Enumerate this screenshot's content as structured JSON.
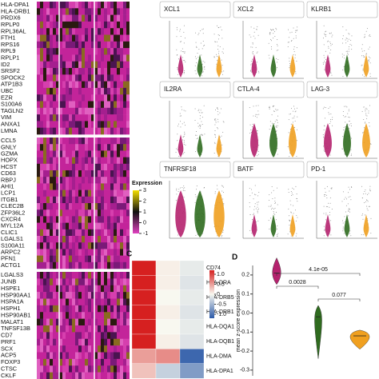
{
  "heatmap": {
    "blocks": [
      [
        "HLA-DPA1",
        "HLA-DRB1",
        "PRDX6",
        "RPLP0",
        "RPL36AL",
        "FTH1",
        "RPS16",
        "RPL9",
        "RPLP1",
        "ID2",
        "SRSF2",
        "SPOCK2",
        "ATP1B3",
        "UBC",
        "EZR",
        "S100A6",
        "TAGLN2",
        "VIM",
        "ANXA1",
        "LMNA"
      ],
      [
        "CCL5",
        "GNLY",
        "GZMA",
        "HOPX",
        "HCST",
        "CD63",
        "RBPJ",
        "AHI1",
        "LCP1",
        "ITGB1",
        "CLEC2B",
        "ZFP36L2",
        "CXCR4",
        "MYL12A",
        "CLIC1",
        "LGALS1",
        "S100A11",
        "ARPC2",
        "PFN1",
        "ACTG1"
      ],
      [
        "LGALS3",
        "JUNB",
        "HSPE1",
        "HSP90AA1",
        "HSPA1A",
        "HSPH1",
        "HSP90AB1",
        "MALAT1",
        "TNFSF13B",
        "CD7",
        "PRF1",
        "SCX",
        "ACP5",
        "FOXP3",
        "CTSC",
        "CKLF"
      ]
    ],
    "legend_title": "Expression",
    "legend_ticks": [
      3,
      2,
      1,
      0,
      -1
    ]
  },
  "violins": {
    "titles": [
      "XCL1",
      "XCL2",
      "KLRB1",
      "IL2RA",
      "CTLA-4",
      "LAG-3",
      "TNFRSF18",
      "BATF",
      "PD-1"
    ]
  },
  "panel_c": {
    "label": "C",
    "genes": [
      "CD74",
      "HLA-DRA",
      "HLA-DRB5",
      "HLA-DRB1",
      "HLA-DQA1",
      "HLA-DQB1",
      "HLA-DMA",
      "HLA-DPA1"
    ],
    "matrix": [
      [
        1.2,
        0.05,
        -0.1
      ],
      [
        1.2,
        0.05,
        -0.15
      ],
      [
        1.2,
        0.0,
        -0.1
      ],
      [
        1.2,
        0.05,
        -0.15
      ],
      [
        1.2,
        0.0,
        -0.1
      ],
      [
        1.2,
        0.05,
        -0.15
      ],
      [
        0.5,
        0.6,
        -1.1
      ],
      [
        0.3,
        -0.3,
        -0.7
      ]
    ],
    "colorbar_ticks": [
      {
        "value": 1.0,
        "label": "1.0"
      },
      {
        "value": 0.5,
        "label": "0.5"
      },
      0,
      {
        "value": -0.5,
        "label": "-0.5"
      },
      {
        "value": -1.0,
        "label": "-1.0"
      }
    ],
    "clim": [
      -1.2,
      1.2
    ]
  },
  "panel_d": {
    "label": "D",
    "y_label": "mean z-score expression",
    "values": [
      0.21,
      -0.02,
      -0.12
    ],
    "colors": [
      "#b5226e",
      "#2f6b1f",
      "#f0a020"
    ],
    "ylim": [
      -0.33,
      0.25
    ],
    "yticks": [
      0.2,
      0.1,
      {
        "value": 0,
        "label": "0.0"
      },
      -0.1,
      -0.2,
      -0.3
    ],
    "annotations": [
      "4.1e-05",
      "0.0028",
      "0.077"
    ]
  }
}
